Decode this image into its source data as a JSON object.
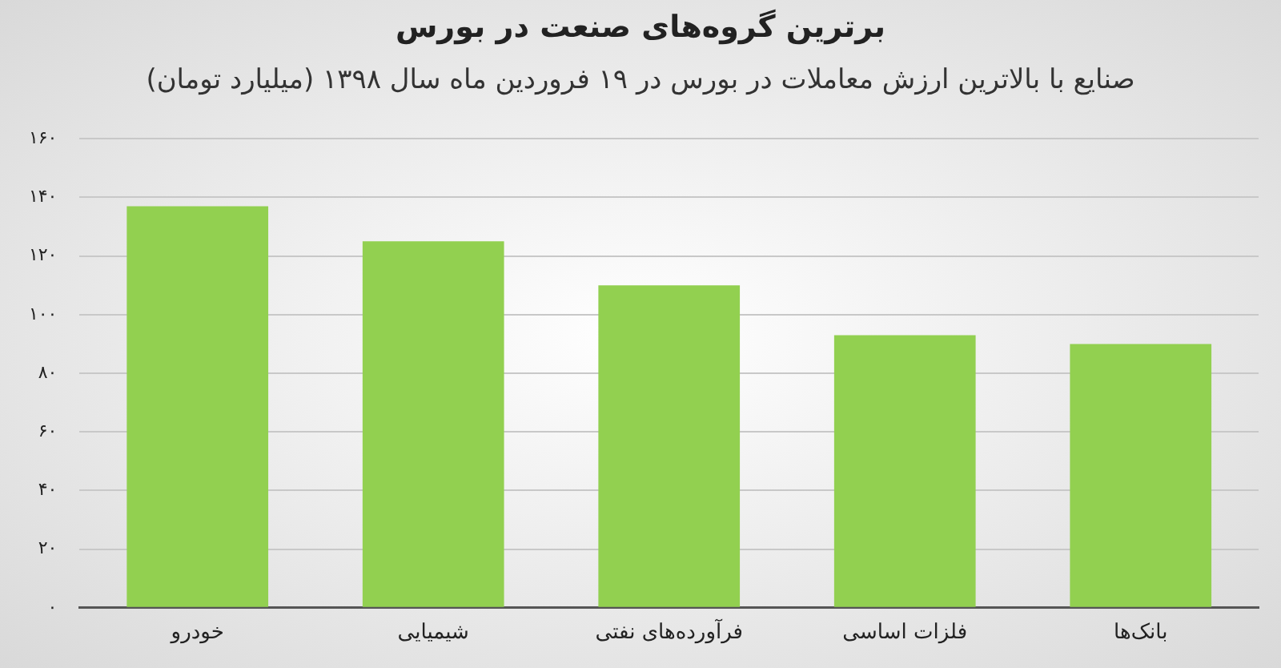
{
  "chart_data": {
    "type": "bar",
    "title": "برترین گروه‌های صنعت در بورس",
    "subtitle": "صنایع با بالاترین ارزش معاملات در بورس در ۱۹ فروردین ماه سال ۱۳۹۸ (میلیارد تومان)",
    "categories": [
      "خودرو",
      "شیمیایی",
      "فرآورده‌های نفتی",
      "فلزات اساسی",
      "بانک‌ها"
    ],
    "values": [
      137,
      125,
      110,
      93,
      90
    ],
    "color": "#92d050",
    "ylim": [
      0,
      160
    ],
    "yticks": [
      {
        "value": 0,
        "label": "۰"
      },
      {
        "value": 20,
        "label": "۲۰"
      },
      {
        "value": 40,
        "label": "۴۰"
      },
      {
        "value": 60,
        "label": "۶۰"
      },
      {
        "value": 80,
        "label": "۸۰"
      },
      {
        "value": 100,
        "label": "۱۰۰"
      },
      {
        "value": 120,
        "label": "۱۲۰"
      },
      {
        "value": 140,
        "label": "۱۴۰"
      },
      {
        "value": 160,
        "label": "۱۶۰"
      }
    ],
    "grid": "y"
  }
}
